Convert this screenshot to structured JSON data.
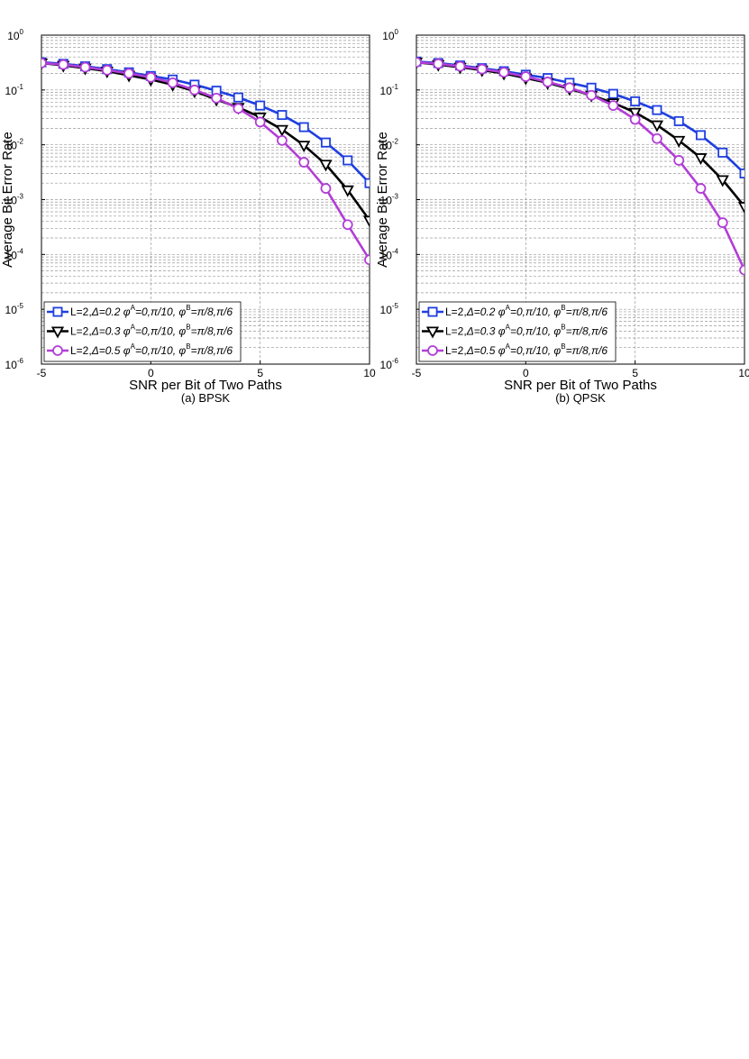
{
  "chart_data": [
    {
      "type": "line",
      "caption": "(a) BPSK",
      "xlabel": "SNR per Bit of Two Paths",
      "ylabel": "Average Bit Error Rate",
      "xlim": [
        -5,
        10
      ],
      "ylim": [
        1e-06,
        1
      ],
      "yscale": "log",
      "grid": true,
      "legend_position": "lower-left",
      "x_ticks": [
        "-5",
        "0",
        "5",
        "10"
      ],
      "y_ticks": [
        {
          "base": "10",
          "exp": "0"
        },
        {
          "base": "10",
          "exp": "-1"
        },
        {
          "base": "10",
          "exp": "-2"
        },
        {
          "base": "10",
          "exp": "-3"
        },
        {
          "base": "10",
          "exp": "-4"
        },
        {
          "base": "10",
          "exp": "-5"
        },
        {
          "base": "10",
          "exp": "-6"
        }
      ],
      "x": [
        -5,
        -4,
        -3,
        -2,
        -1,
        0,
        1,
        2,
        3,
        4,
        5,
        6,
        7,
        8,
        9,
        10
      ],
      "series": [
        {
          "legend": {
            "prefix": "L=2,",
            "delta": "Δ=0.2",
            "phiA": "=0,π/10,",
            "phiB": "=π/8,π/6"
          },
          "color": "#1f3fe0",
          "marker": "square",
          "values": [
            0.32,
            0.3,
            0.27,
            0.24,
            0.21,
            0.18,
            0.155,
            0.125,
            0.097,
            0.073,
            0.052,
            0.035,
            0.021,
            0.011,
            0.0052,
            0.002
          ]
        },
        {
          "legend": {
            "prefix": "L=2,",
            "delta": "Δ=0.3",
            "phiA": "=0,π/10,",
            "phiB": "=π/8,π/6"
          },
          "color": "#000000",
          "marker": "triangle-down",
          "values": [
            0.31,
            0.28,
            0.25,
            0.22,
            0.185,
            0.155,
            0.125,
            0.095,
            0.067,
            0.048,
            0.032,
            0.019,
            0.0098,
            0.0044,
            0.0015,
            0.00042
          ]
        },
        {
          "legend": {
            "prefix": "L=2,",
            "delta": "Δ=0.5",
            "phiA": "=0,π/10,",
            "phiB": "=π/8,π/6"
          },
          "color": "#b23ed6",
          "marker": "circle",
          "values": [
            0.31,
            0.29,
            0.26,
            0.23,
            0.2,
            0.17,
            0.135,
            0.1,
            0.071,
            0.046,
            0.026,
            0.012,
            0.0048,
            0.0016,
            0.00035,
            8e-05
          ]
        }
      ]
    },
    {
      "type": "line",
      "caption": "(b) QPSK",
      "xlabel": "SNR per Bit of Two Paths",
      "ylabel": "Average Bit Error Rate",
      "xlim": [
        -5,
        10
      ],
      "ylim": [
        1e-06,
        1
      ],
      "yscale": "log",
      "grid": true,
      "legend_position": "lower-left",
      "x_ticks": [
        "-5",
        "0",
        "5",
        "10"
      ],
      "y_ticks": [
        {
          "base": "10",
          "exp": "0"
        },
        {
          "base": "10",
          "exp": "-1"
        },
        {
          "base": "10",
          "exp": "-2"
        },
        {
          "base": "10",
          "exp": "-3"
        },
        {
          "base": "10",
          "exp": "-4"
        },
        {
          "base": "10",
          "exp": "-5"
        },
        {
          "base": "10",
          "exp": "-6"
        }
      ],
      "x": [
        -5,
        -4,
        -3,
        -2,
        -1,
        0,
        1,
        2,
        3,
        4,
        5,
        6,
        7,
        8,
        9,
        10
      ],
      "series": [
        {
          "legend": {
            "prefix": "L=2,",
            "delta": "Δ=0.2",
            "phiA": "=0,π/10,",
            "phiB": "=π/8,π/6"
          },
          "color": "#1f3fe0",
          "marker": "square",
          "values": [
            0.33,
            0.31,
            0.28,
            0.25,
            0.22,
            0.19,
            0.165,
            0.135,
            0.11,
            0.085,
            0.062,
            0.043,
            0.027,
            0.015,
            0.0072,
            0.003
          ]
        },
        {
          "legend": {
            "prefix": "L=2,",
            "delta": "Δ=0.3",
            "phiA": "=0,π/10,",
            "phiB": "=π/8,π/6"
          },
          "color": "#000000",
          "marker": "triangle-down",
          "values": [
            0.32,
            0.29,
            0.26,
            0.23,
            0.2,
            0.165,
            0.135,
            0.105,
            0.08,
            0.058,
            0.039,
            0.023,
            0.012,
            0.0058,
            0.0023,
            0.00075
          ]
        },
        {
          "legend": {
            "prefix": "L=2,",
            "delta": "Δ=0.5",
            "phiA": "=0,π/10,",
            "phiB": "=π/8,π/6"
          },
          "color": "#b23ed6",
          "marker": "circle",
          "values": [
            0.32,
            0.3,
            0.27,
            0.24,
            0.21,
            0.175,
            0.14,
            0.11,
            0.08,
            0.052,
            0.029,
            0.013,
            0.0052,
            0.0016,
            0.00038,
            5.2e-05
          ]
        }
      ]
    }
  ]
}
